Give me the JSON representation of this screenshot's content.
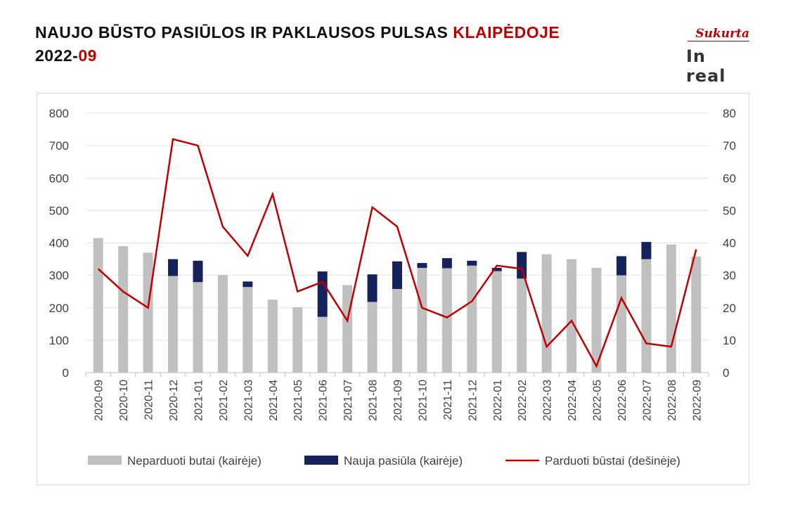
{
  "header": {
    "title_main": "NAUJO BŪSTO PASIŪLOS IR PAKLAUSOS PULSAS ",
    "title_accent": "KLAIPĖDOJE",
    "subtitle_main": "2022-",
    "subtitle_accent": "09"
  },
  "logo": {
    "top_text": "Sukurta",
    "bottom_text": "In real"
  },
  "colors": {
    "unsold": "#c0c0c0",
    "new_offer": "#15225c",
    "sold": "#c00000",
    "accent": "#c00000"
  },
  "chart_data": {
    "type": "bar",
    "categories": [
      "2020-09",
      "2020-10",
      "2020-11",
      "2020-12",
      "2021-01",
      "2021-02",
      "2021-03",
      "2021-04",
      "2021-05",
      "2021-06",
      "2021-07",
      "2021-08",
      "2021-09",
      "2021-10",
      "2021-11",
      "2021-12",
      "2022-01",
      "2022-02",
      "2022-03",
      "2022-04",
      "2022-05",
      "2022-06",
      "2022-07",
      "2022-08",
      "2022-09"
    ],
    "y_left": {
      "ylim": [
        0,
        800
      ],
      "ticks": [
        0,
        100,
        200,
        300,
        400,
        500,
        600,
        700,
        800
      ]
    },
    "y_right": {
      "ylim": [
        0,
        80
      ],
      "ticks": [
        0,
        10,
        20,
        30,
        40,
        50,
        60,
        70,
        80
      ]
    },
    "grid": true,
    "legend_position": "bottom",
    "series": [
      {
        "name": "Neparduoti butai (kairėje)",
        "type": "bar",
        "axis": "left",
        "stack": "a",
        "values": [
          415,
          390,
          370,
          298,
          279,
          301,
          264,
          225,
          202,
          172,
          270,
          218,
          258,
          323,
          322,
          330,
          313,
          290,
          365,
          350,
          323,
          300,
          350,
          395,
          358
        ]
      },
      {
        "name": "Nauja pasiūla (kairėje)",
        "type": "bar",
        "axis": "left",
        "stack": "a",
        "values": [
          0,
          0,
          0,
          52,
          66,
          0,
          17,
          0,
          0,
          140,
          0,
          85,
          85,
          15,
          31,
          15,
          10,
          82,
          0,
          0,
          0,
          59,
          53,
          0,
          0
        ]
      },
      {
        "name": "Parduoti būstai (dešinėje)",
        "type": "line",
        "axis": "right",
        "values": [
          32,
          25,
          20,
          72,
          70,
          45,
          36,
          55,
          25,
          28,
          16,
          51,
          45,
          20,
          17,
          22,
          33,
          32,
          8,
          16,
          2,
          23,
          9,
          8,
          38
        ]
      }
    ]
  }
}
